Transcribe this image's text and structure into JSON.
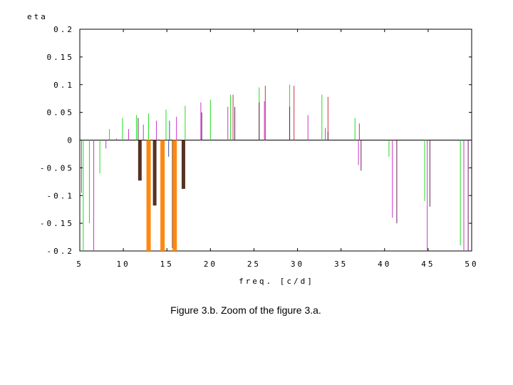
{
  "caption": "Figure 3.b. Zoom of the figure 3.a.",
  "chart_data": {
    "type": "bar",
    "ylabel": "eta",
    "xlabel": "freq. [c/d]",
    "xlim": [
      5,
      50
    ],
    "ylim": [
      -0.2,
      0.2
    ],
    "xticks": [
      "5",
      "10",
      "15",
      "20",
      "25",
      "30",
      "35",
      "40",
      "45",
      "50"
    ],
    "yticks": [
      "0.2",
      "0.15",
      "0.1",
      "0.05",
      "0",
      "-0.05",
      "-0.1",
      "-0.15",
      "-0.2"
    ],
    "grid": false,
    "series": [
      {
        "color": "#22dd22",
        "bars": [
          [
            5.4,
            -0.2
          ],
          [
            6.1,
            -0.15
          ],
          [
            7.3,
            -0.06
          ],
          [
            8.4,
            0.02
          ],
          [
            9.9,
            0.04
          ],
          [
            11.5,
            0.045
          ],
          [
            12.9,
            0.048
          ],
          [
            14.9,
            0.055
          ],
          [
            17.1,
            0.062
          ],
          [
            20.0,
            0.073
          ],
          [
            22.3,
            0.082
          ],
          [
            25.6,
            0.095
          ],
          [
            29.1,
            0.1
          ],
          [
            32.8,
            0.082
          ],
          [
            36.6,
            0.04
          ],
          [
            40.5,
            -0.03
          ],
          [
            44.6,
            -0.11
          ],
          [
            48.7,
            -0.19
          ]
        ]
      },
      {
        "color": "#cc33cc",
        "bars": [
          [
            5.2,
            -0.095
          ],
          [
            6.6,
            -0.2
          ],
          [
            8.0,
            -0.015
          ],
          [
            9.2,
            0.003
          ],
          [
            10.6,
            0.02
          ],
          [
            12.3,
            0.028
          ],
          [
            13.8,
            0.035
          ],
          [
            16.1,
            0.042
          ],
          [
            18.9,
            0.068
          ],
          [
            22.0,
            0.06
          ],
          [
            26.2,
            0.07
          ],
          [
            31.2,
            0.045
          ],
          [
            33.2,
            0.022
          ],
          [
            37.0,
            -0.045
          ],
          [
            40.9,
            -0.14
          ],
          [
            44.9,
            -0.2
          ],
          [
            49.1,
            -0.2
          ]
        ]
      },
      {
        "color": "#cc3344",
        "bars": [
          [
            22.6,
            0.082
          ],
          [
            26.3,
            0.098
          ],
          [
            29.6,
            0.098
          ],
          [
            33.5,
            0.078
          ],
          [
            37.1,
            0.03
          ]
        ]
      },
      {
        "color": "#662255",
        "bars": [
          [
            11.7,
            0.04
          ],
          [
            19.0,
            0.05
          ],
          [
            22.8,
            0.06
          ],
          [
            25.6,
            0.068
          ],
          [
            29.1,
            0.06
          ],
          [
            33.5,
            0.015
          ],
          [
            37.3,
            -0.055
          ],
          [
            41.4,
            -0.15
          ],
          [
            45.2,
            -0.12
          ],
          [
            49.6,
            -0.2
          ]
        ]
      },
      {
        "color": "#553322",
        "bars": [
          [
            11.9,
            -0.073
          ],
          [
            13.6,
            -0.118
          ],
          [
            15.8,
            -0.195
          ],
          [
            16.9,
            -0.088
          ]
        ]
      },
      {
        "color": "#ff8811",
        "bars": [
          [
            12.9,
            -0.2
          ],
          [
            14.5,
            -0.2
          ],
          [
            15.9,
            -0.2
          ]
        ]
      },
      {
        "color": "#3355aa",
        "bars": [
          [
            15.2,
            -0.03
          ],
          [
            15.3,
            0.035
          ]
        ]
      }
    ]
  }
}
